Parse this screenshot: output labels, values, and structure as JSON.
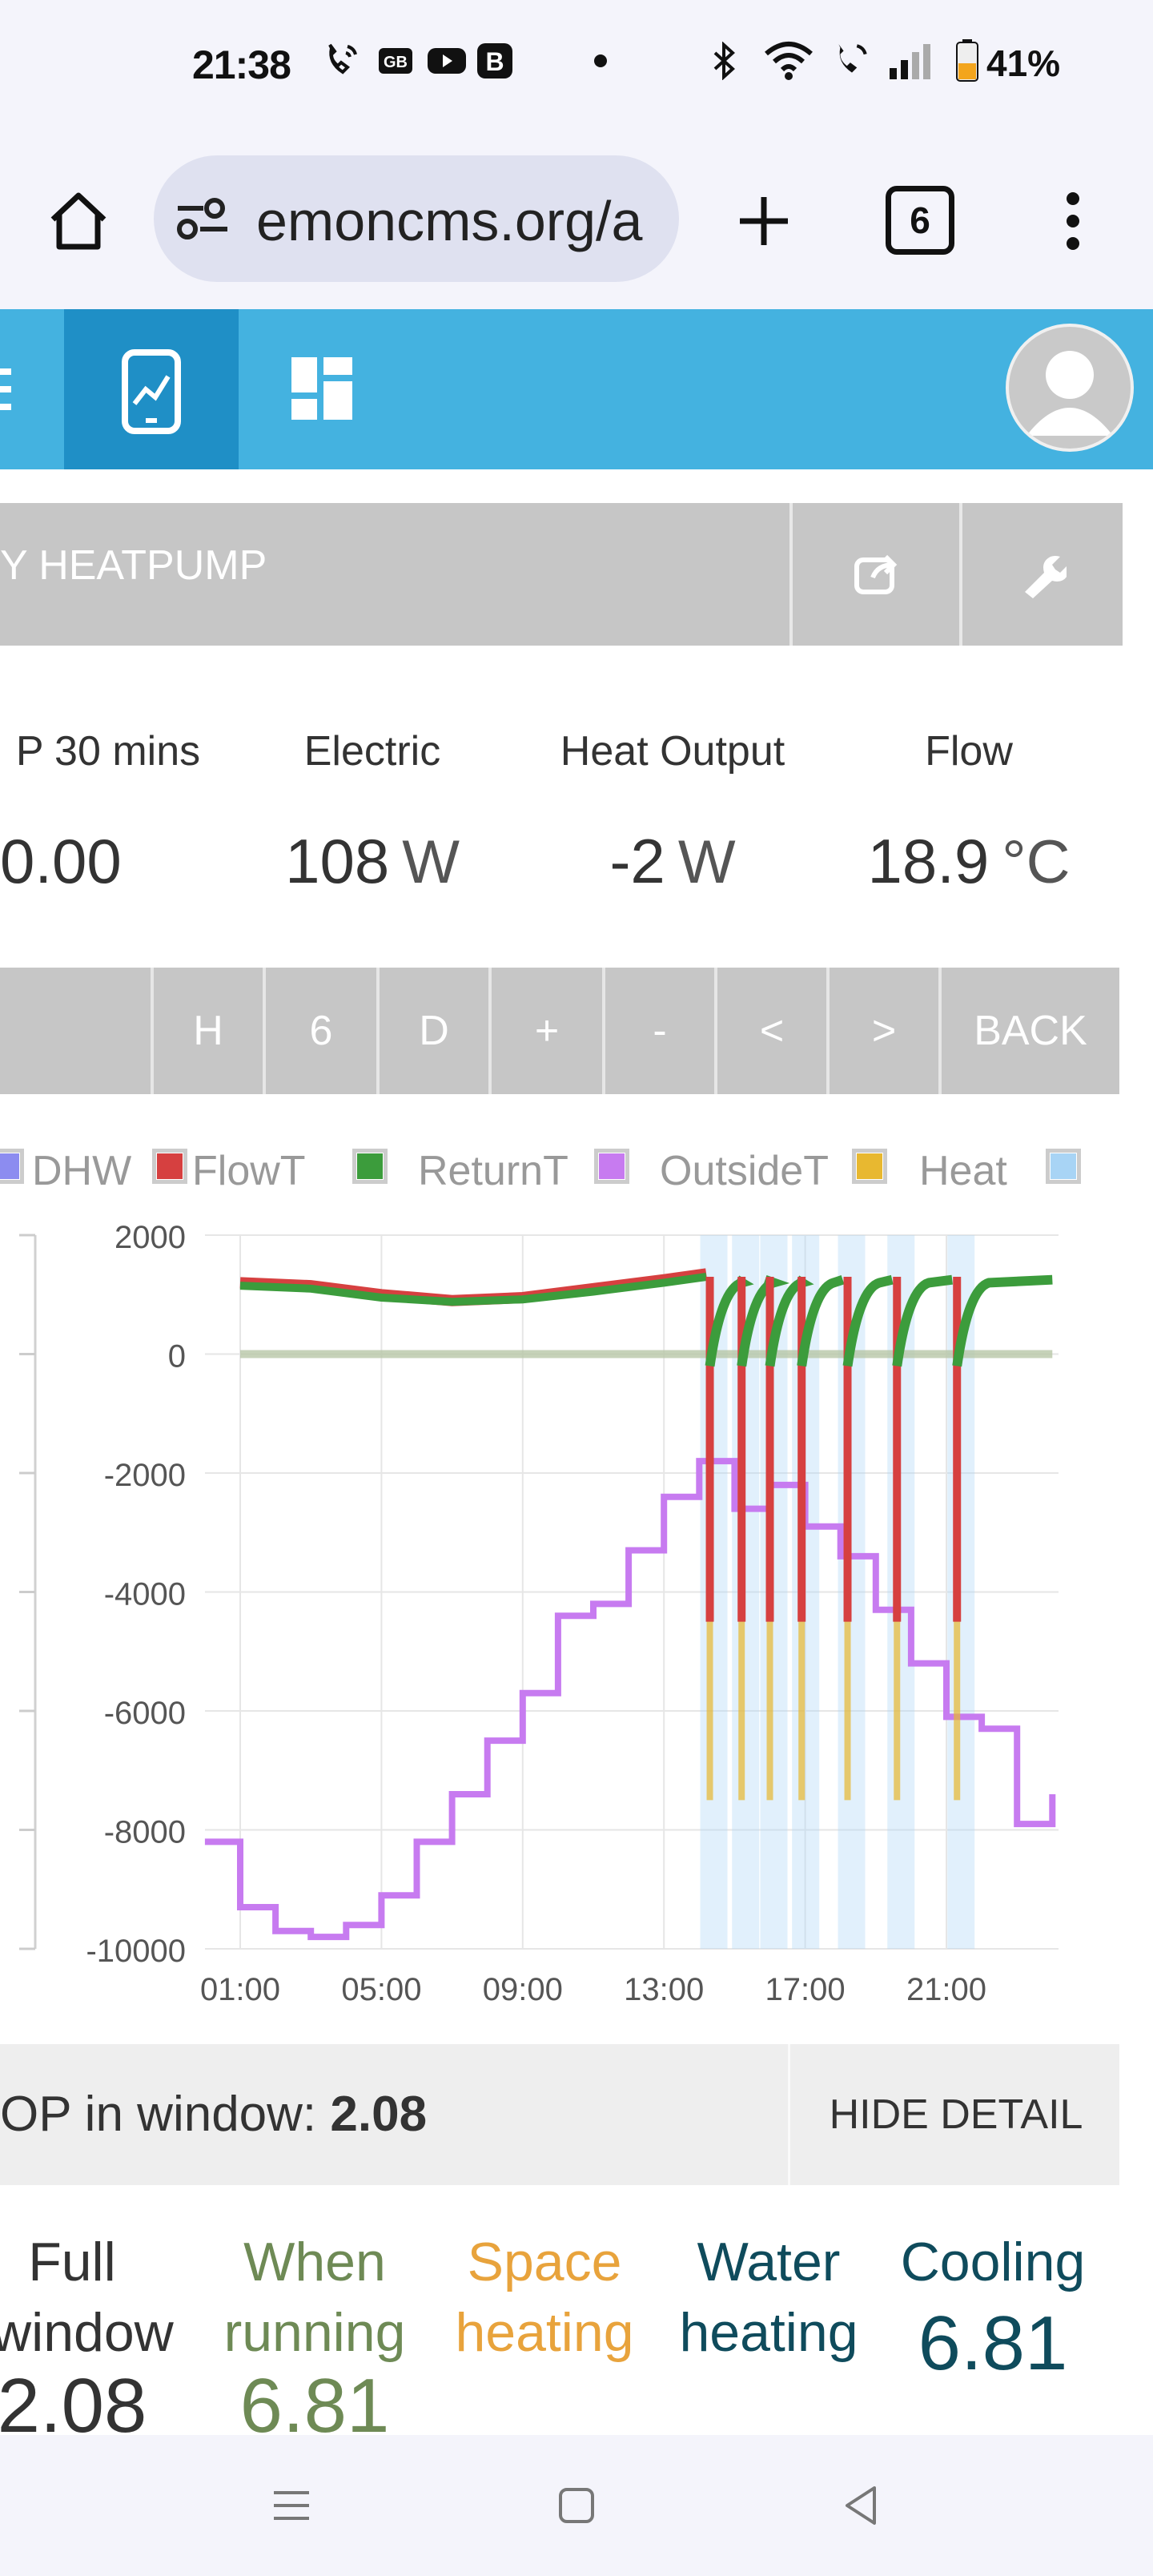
{
  "status_bar": {
    "time": "21:38",
    "battery_percent": "41%",
    "icons": [
      "wifi-calling-icon",
      "gb-badge-icon",
      "youtube-icon",
      "b-badge-icon",
      "dot-icon",
      "bluetooth-icon",
      "wifi-icon",
      "call-icon",
      "signal-icon",
      "battery-icon"
    ]
  },
  "browser": {
    "url": "emoncms.org/a",
    "tab_count": "6",
    "icons": [
      "home-icon",
      "tune-icon",
      "plus-icon",
      "tabs-icon",
      "more-icon"
    ]
  },
  "app_nav": {
    "icons": [
      "menu-icon",
      "app-graph-icon",
      "dashboard-icon",
      "user-avatar-icon"
    ],
    "accent": "#44b2e0",
    "active_accent": "#1f8fc6"
  },
  "title_bar": {
    "title": "Y HEATPUMP",
    "icons": [
      "share-icon",
      "wrench-icon"
    ]
  },
  "stats": [
    {
      "label": "P 30 mins",
      "value": "0.00",
      "unit": ""
    },
    {
      "label": "Electric",
      "value": "108",
      "unit": "W"
    },
    {
      "label": "Heat Output",
      "value": "-2",
      "unit": "W"
    },
    {
      "label": "Flow",
      "value": "18.9",
      "unit": "°C"
    }
  ],
  "time_controls": [
    "H",
    "6",
    "D",
    "+",
    "-",
    "<",
    ">",
    "BACK"
  ],
  "legend": [
    {
      "label": "DHW",
      "color": "#8c8cf0"
    },
    {
      "label": "FlowT",
      "color": "#d64040"
    },
    {
      "label": "ReturnT",
      "color": "#3c9c3c"
    },
    {
      "label": "OutsideT",
      "color": "#c77bf0"
    },
    {
      "label": "Heat",
      "color": "#e8b830"
    },
    {
      "label": "",
      "color": "#a8d4f5"
    }
  ],
  "chart_data": {
    "type": "line",
    "y_ticks": [
      "2000",
      "0",
      "-2000",
      "-4000",
      "-6000",
      "-8000",
      "-10000"
    ],
    "x_ticks": [
      "01:00",
      "05:00",
      "09:00",
      "13:00",
      "17:00",
      "21:00"
    ],
    "ylim": [
      -10000,
      2000
    ],
    "xlim_hours": [
      0,
      24.5
    ],
    "grid": true,
    "legend_position": "top",
    "series": [
      {
        "name": "FlowT",
        "color": "#d64040",
        "x": [
          1.0,
          3,
          5,
          7,
          9,
          11,
          13,
          14.2
        ],
        "y": [
          1200,
          1150,
          1000,
          900,
          950,
          1100,
          1250,
          1350
        ]
      },
      {
        "name": "ReturnT",
        "color": "#3c9c3c",
        "x": [
          1.0,
          3,
          5,
          7,
          9,
          11,
          13,
          14.2
        ],
        "y": [
          1150,
          1100,
          950,
          880,
          920,
          1050,
          1200,
          1300
        ]
      },
      {
        "name": "OutsideT",
        "color": "#c77bf0",
        "x": [
          0,
          1,
          1,
          2,
          2,
          3,
          3,
          4,
          4,
          5,
          5,
          6,
          6,
          7,
          7,
          8,
          8,
          9,
          9,
          10,
          10,
          11,
          11,
          12,
          12,
          13,
          13,
          14,
          14,
          15,
          15,
          16,
          16,
          17,
          17,
          18,
          18,
          19,
          19,
          20,
          20,
          21,
          21,
          22,
          22,
          23,
          23,
          24,
          24
        ],
        "y": [
          -8200,
          -8200,
          -9300,
          -9300,
          -9700,
          -9700,
          -9800,
          -9800,
          -9600,
          -9600,
          -9100,
          -9100,
          -8200,
          -8200,
          -7400,
          -7400,
          -6500,
          -6500,
          -5700,
          -5700,
          -4400,
          -4400,
          -4200,
          -4200,
          -3300,
          -3300,
          -2400,
          -2400,
          -1800,
          -1800,
          -2600,
          -2600,
          -2200,
          -2200,
          -2900,
          -2900,
          -3400,
          -3400,
          -4300,
          -4300,
          -5200,
          -5200,
          -6100,
          -6100,
          -6300,
          -6300,
          -7900,
          -7900,
          -7400
        ]
      }
    ],
    "cycles_hours": [
      14.3,
      15.2,
      16.0,
      16.9,
      18.2,
      19.6,
      21.3
    ]
  },
  "cop_bar": {
    "label": "OP in window:",
    "value": "2.08",
    "hide_label": "HIDE DETAIL"
  },
  "cop_detail": [
    {
      "line1": "Full",
      "line2": "window",
      "value": "2.08",
      "color": "#333333"
    },
    {
      "line1": "When",
      "line2": "running",
      "value": "6.81",
      "color": "#6e8a55"
    },
    {
      "line1": "Space",
      "line2": "heating",
      "value": "",
      "color": "#e8a33c"
    },
    {
      "line1": "Water",
      "line2": "heating",
      "value": "",
      "color": "#0f4b5c"
    },
    {
      "line1": "Cooling",
      "line2": "",
      "value": "6.81",
      "color": "#0f4b5c"
    }
  ],
  "system_nav": {
    "icons": [
      "recents-icon",
      "home-button-icon",
      "back-icon"
    ]
  }
}
